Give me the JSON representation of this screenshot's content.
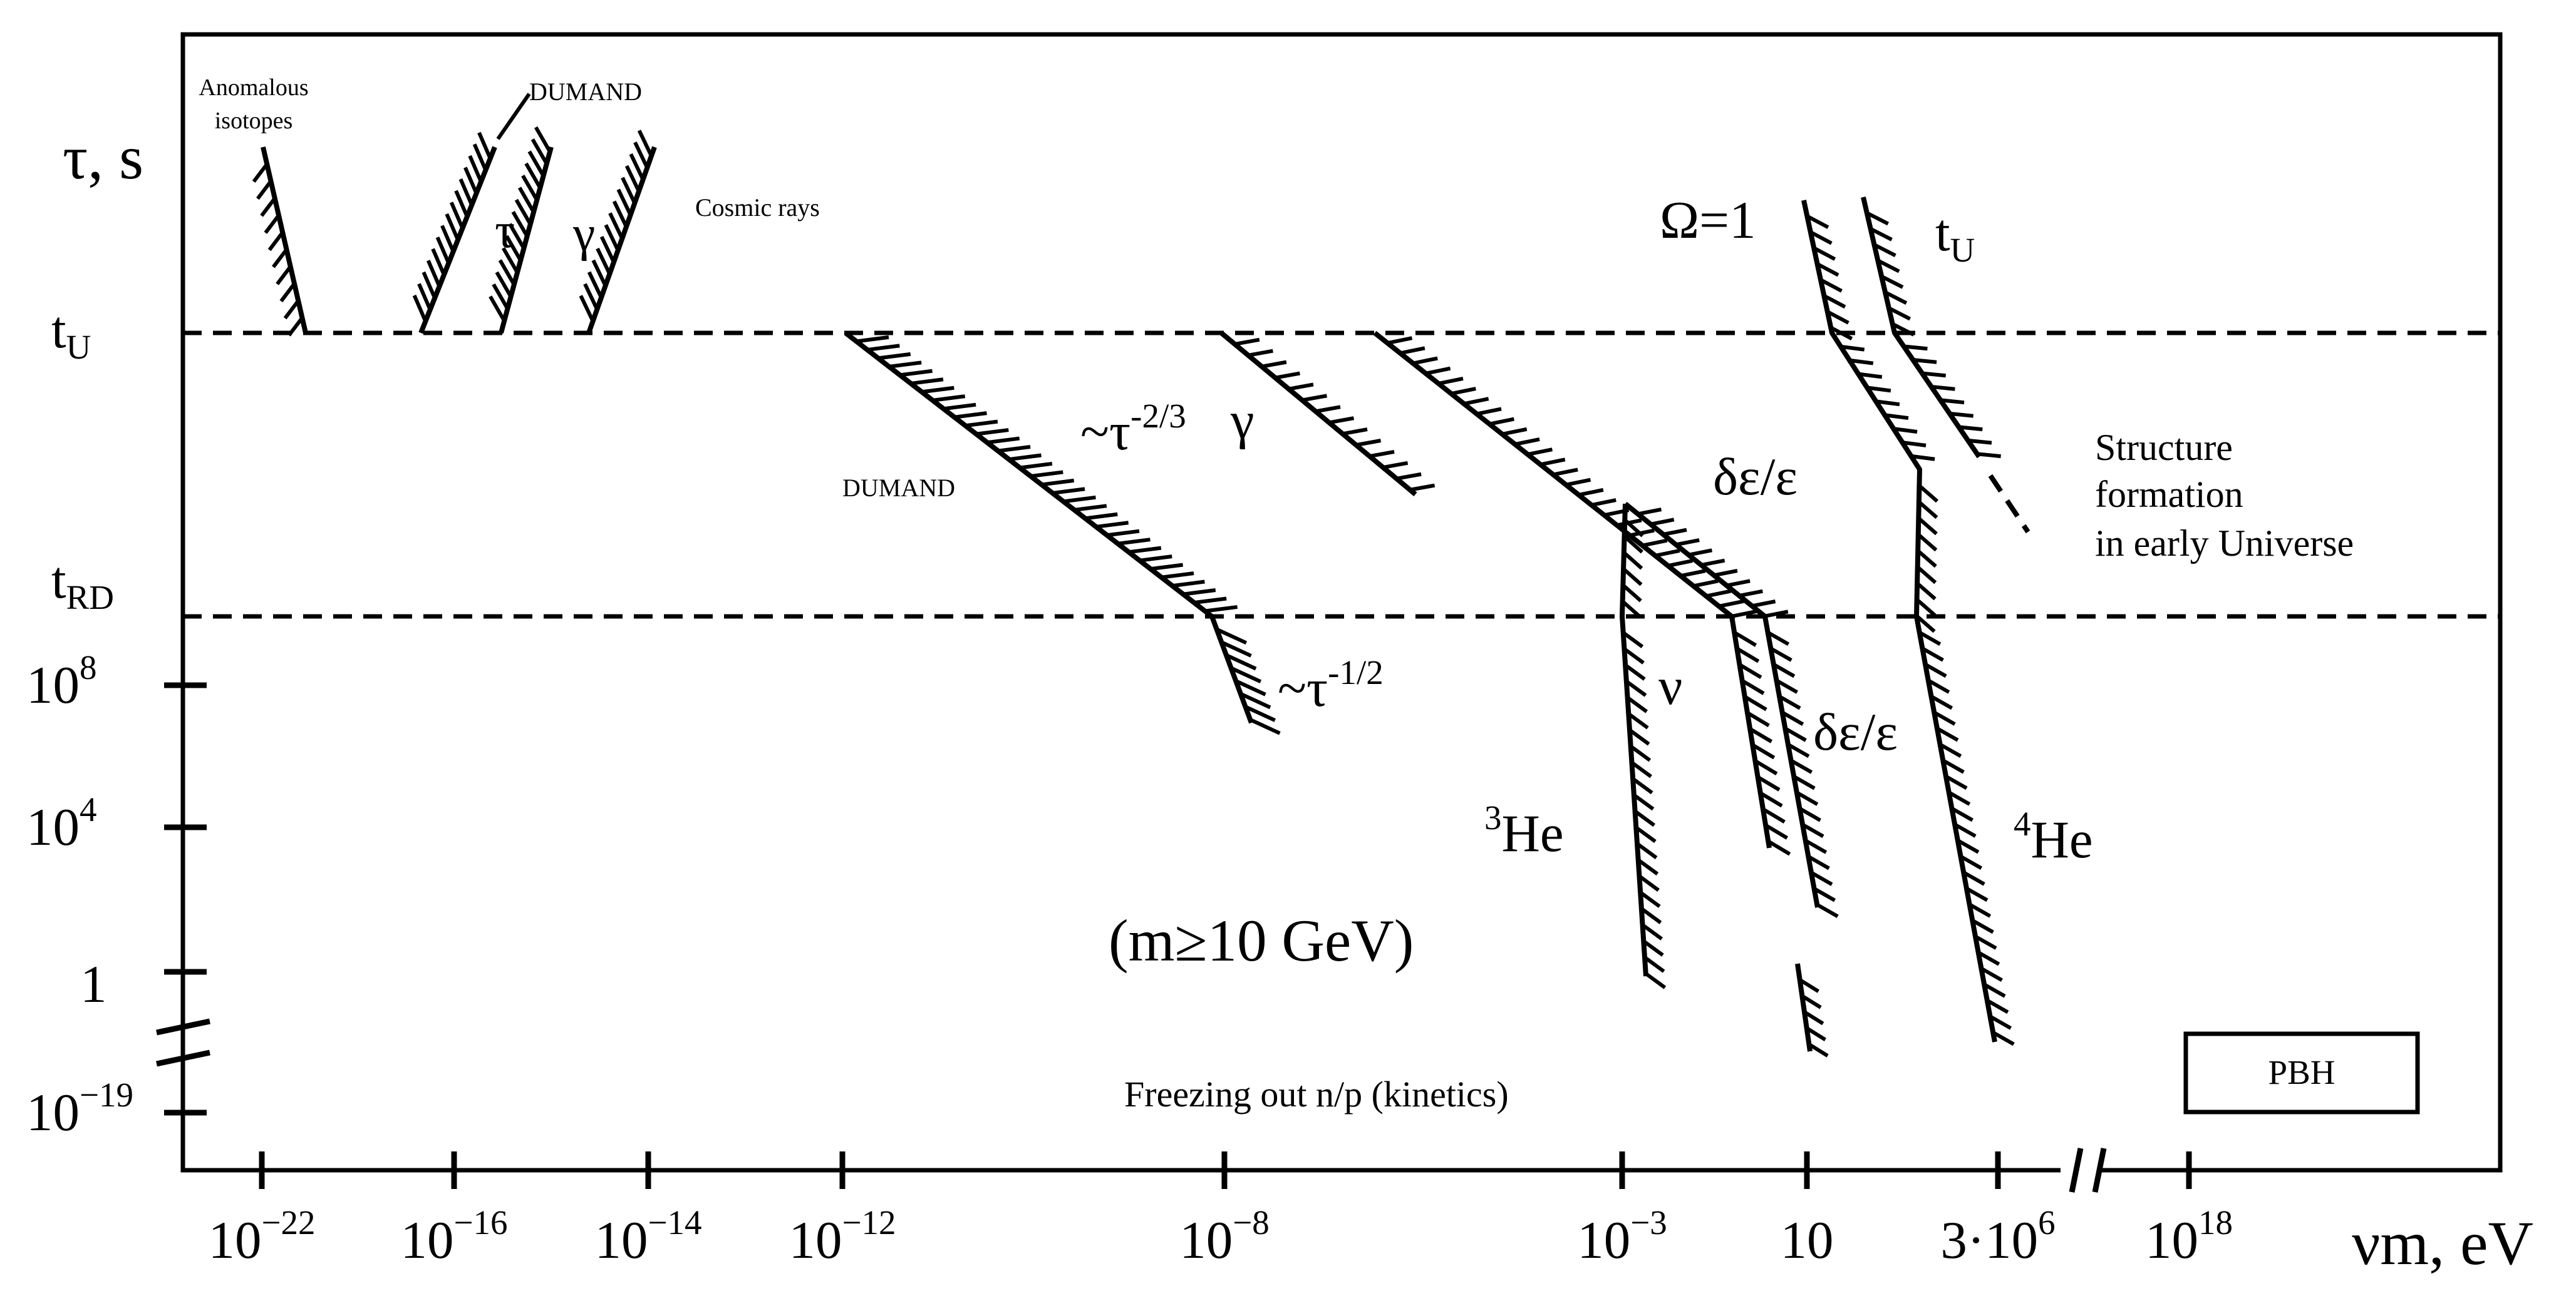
{
  "chart_data": {
    "type": "line",
    "title": "",
    "xlabel": "νm, eV",
    "ylabel": "τ, s",
    "x_scale": "log (non-uniform, with axis break)",
    "y_scale": "log (non-uniform, with axis break)",
    "x_ticks": [
      {
        "label": "10",
        "exp": "−22"
      },
      {
        "label": "10",
        "exp": "−16"
      },
      {
        "label": "10",
        "exp": "−14"
      },
      {
        "label": "10",
        "exp": "−12"
      },
      {
        "label": "10",
        "exp": "−8"
      },
      {
        "label": "10",
        "exp": "−3"
      },
      {
        "label": "10",
        "exp": ""
      },
      {
        "label": "3·10",
        "exp": "6"
      },
      {
        "label": "10",
        "exp": "18"
      }
    ],
    "y_ticks": [
      {
        "label": "10",
        "exp": "−19"
      },
      {
        "label": "1",
        "exp": ""
      },
      {
        "label": "10",
        "exp": "4"
      },
      {
        "label": "10",
        "exp": "8"
      }
    ],
    "reference_lines": [
      {
        "name": "t",
        "sub": "U"
      },
      {
        "name": "t",
        "sub": "RD"
      }
    ],
    "constraint_labels": {
      "anomalous": [
        "Anomalous",
        "isotopes"
      ],
      "dumand_top": "DUMAND",
      "tau_left": "τ",
      "gamma_left": "γ",
      "cosmic": "Cosmic rays",
      "omega": "Ω=1",
      "tu_label": {
        "name": "t",
        "sub": "U"
      },
      "tau_23": {
        "base": "~τ",
        "exp": "-2/3"
      },
      "gamma_mid": "γ",
      "dumand_mid": "DUMAND",
      "de1": "δε/ε",
      "structure": [
        "Structure",
        "formation",
        "in early Universe"
      ],
      "tau_12": {
        "base": "~τ",
        "exp": "-1/2"
      },
      "nu": "ν",
      "de2": "δε/ε",
      "he3": {
        "sup": "3",
        "base": "He"
      },
      "he4": {
        "sup": "4",
        "base": "He"
      },
      "mass": "(m≥10 GeV)",
      "freeze": "Freezing out n/p (kinetics)",
      "pbh": "PBH"
    }
  }
}
